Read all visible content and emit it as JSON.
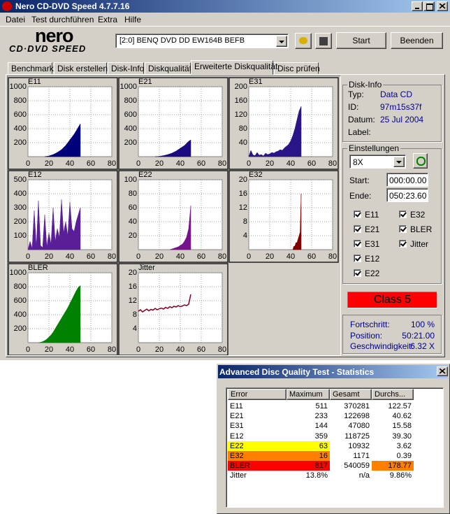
{
  "window": {
    "title": "Nero CD-DVD Speed 4.7.7.16"
  },
  "menu": [
    "Datei",
    "Test durchführen",
    "Extra",
    "Hilfe"
  ],
  "logo": {
    "brand": "nero",
    "product": "CD·DVD SPEED"
  },
  "drive": "[2:0]  BENQ DVD DD EW164B BEFB",
  "buttons": {
    "start": "Start",
    "stop": "Beenden"
  },
  "tabs": [
    "Benchmark",
    "Disk erstellen",
    "Disk-Info",
    "Diskqualität",
    "Erweiterte Diskqualität",
    "Disc prüfen"
  ],
  "chart_data": [
    {
      "type": "area",
      "title": "E11",
      "color": "#00007a",
      "grid": true,
      "xlim": [
        0,
        80
      ],
      "xticks": [
        0,
        20,
        40,
        60,
        80
      ],
      "ylim": [
        0,
        1000
      ],
      "yticks": [
        200,
        400,
        600,
        800,
        1000
      ],
      "x": [
        16,
        18,
        20,
        22,
        24,
        26,
        28,
        30,
        32,
        34,
        36,
        38,
        40,
        42,
        44,
        46,
        48,
        50
      ],
      "values": [
        0,
        5,
        10,
        20,
        30,
        45,
        60,
        80,
        100,
        130,
        160,
        200,
        240,
        280,
        320,
        370,
        420,
        470
      ]
    },
    {
      "type": "area",
      "title": "E21",
      "color": "#1a0a80",
      "grid": true,
      "xlim": [
        0,
        80
      ],
      "xticks": [
        0,
        20,
        40,
        60,
        80
      ],
      "ylim": [
        0,
        1000
      ],
      "yticks": [
        200,
        400,
        600,
        800,
        1000
      ],
      "x": [
        16,
        18,
        20,
        22,
        24,
        26,
        28,
        30,
        32,
        34,
        36,
        38,
        40,
        42,
        44,
        46,
        48,
        50
      ],
      "values": [
        0,
        2,
        5,
        10,
        15,
        22,
        30,
        40,
        50,
        65,
        80,
        100,
        120,
        140,
        160,
        190,
        220,
        240
      ]
    },
    {
      "type": "area",
      "title": "E31",
      "color": "#2a1488",
      "grid": true,
      "xlim": [
        0,
        80
      ],
      "xticks": [
        0,
        20,
        40,
        60,
        80
      ],
      "ylim": [
        0,
        200
      ],
      "yticks": [
        40,
        80,
        120,
        160,
        200
      ],
      "x": [
        0,
        2,
        4,
        6,
        8,
        10,
        12,
        14,
        16,
        18,
        20,
        22,
        24,
        26,
        28,
        30,
        32,
        34,
        36,
        38,
        40,
        42,
        44,
        46,
        48,
        50
      ],
      "values": [
        0,
        18,
        5,
        3,
        12,
        4,
        6,
        2,
        10,
        6,
        8,
        12,
        10,
        14,
        16,
        20,
        18,
        25,
        30,
        35,
        45,
        60,
        80,
        105,
        130,
        144
      ]
    },
    {
      "type": "area",
      "title": "E12",
      "color": "#5a1e96",
      "grid": true,
      "xlim": [
        0,
        80
      ],
      "xticks": [
        0,
        20,
        40,
        60,
        80
      ],
      "ylim": [
        0,
        500
      ],
      "yticks": [
        100,
        200,
        300,
        400,
        500
      ],
      "x": [
        0,
        2,
        4,
        6,
        8,
        10,
        12,
        14,
        16,
        18,
        20,
        22,
        24,
        26,
        28,
        30,
        32,
        34,
        36,
        38,
        40,
        42,
        44,
        46,
        48,
        50
      ],
      "values": [
        0,
        60,
        10,
        280,
        20,
        350,
        30,
        15,
        250,
        20,
        120,
        40,
        300,
        60,
        150,
        90,
        359,
        120,
        200,
        100,
        340,
        150,
        130,
        200,
        250,
        300
      ]
    },
    {
      "type": "area",
      "title": "E22",
      "color": "#76128a",
      "grid": true,
      "xlim": [
        0,
        80
      ],
      "xticks": [
        0,
        20,
        40,
        60,
        80
      ],
      "ylim": [
        0,
        100
      ],
      "yticks": [
        20,
        40,
        60,
        80,
        100
      ],
      "x": [
        30,
        32,
        34,
        36,
        38,
        40,
        42,
        44,
        46,
        48,
        50
      ],
      "values": [
        0,
        1,
        2,
        3,
        4,
        6,
        8,
        12,
        18,
        30,
        63
      ]
    },
    {
      "type": "area",
      "title": "E32",
      "color": "#800000",
      "grid": true,
      "xlim": [
        0,
        80
      ],
      "xticks": [
        0,
        20,
        40,
        60,
        80
      ],
      "ylim": [
        0,
        20
      ],
      "yticks": [
        4,
        8,
        12,
        16,
        20
      ],
      "x": [
        42,
        43,
        44,
        45,
        46,
        47,
        48,
        49,
        50
      ],
      "values": [
        0,
        1,
        1,
        2,
        2,
        3,
        4,
        5,
        16
      ]
    },
    {
      "type": "area",
      "title": "BLER",
      "color": "#008000",
      "grid": true,
      "xlim": [
        0,
        80
      ],
      "xticks": [
        0,
        20,
        40,
        60,
        80
      ],
      "ylim": [
        0,
        1000
      ],
      "yticks": [
        200,
        400,
        600,
        800,
        1000
      ],
      "x": [
        10,
        12,
        14,
        16,
        18,
        20,
        22,
        24,
        26,
        28,
        30,
        32,
        34,
        36,
        38,
        40,
        42,
        44,
        46,
        48,
        50
      ],
      "values": [
        0,
        5,
        15,
        30,
        50,
        80,
        110,
        150,
        200,
        250,
        300,
        350,
        400,
        450,
        500,
        560,
        620,
        680,
        740,
        790,
        817
      ]
    },
    {
      "type": "line",
      "title": "Jitter",
      "color": "#800020",
      "grid": true,
      "xlim": [
        0,
        80
      ],
      "xticks": [
        0,
        20,
        40,
        60,
        80
      ],
      "ylim": [
        0,
        20
      ],
      "yticks": [
        4,
        8,
        12,
        16,
        20
      ],
      "x": [
        0,
        2,
        4,
        6,
        8,
        10,
        12,
        14,
        16,
        18,
        20,
        22,
        24,
        26,
        28,
        30,
        32,
        34,
        36,
        38,
        40,
        42,
        44,
        46,
        48,
        50
      ],
      "values": [
        9.0,
        9.4,
        8.8,
        9.2,
        9.6,
        9.1,
        9.5,
        9.3,
        9.8,
        9.4,
        9.7,
        9.9,
        9.6,
        10.1,
        9.8,
        10.3,
        10.0,
        10.4,
        10.2,
        10.6,
        10.3,
        10.5,
        10.8,
        10.6,
        11.0,
        13.8
      ]
    }
  ],
  "disk_info": {
    "title": "Disk-Info",
    "fields": [
      {
        "label": "Typ:",
        "value": "Data CD"
      },
      {
        "label": "ID:",
        "value": "97m15s37f"
      },
      {
        "label": "Datum:",
        "value": "25 Jul 2004"
      },
      {
        "label": "Label:"
      }
    ]
  },
  "settings": {
    "title": "Einstellungen",
    "speed": "8X",
    "start_label": "Start:",
    "start": "000:00.00",
    "end_label": "Ende:",
    "end": "050:23.60",
    "checks": [
      "E11",
      "E32",
      "E21",
      "BLER",
      "E31",
      "Jitter",
      "E12",
      "E22"
    ]
  },
  "class": "Class 5",
  "progress": [
    {
      "label": "Fortschritt:",
      "value": "100 %"
    },
    {
      "label": "Position:",
      "value": "50:21.00"
    },
    {
      "label": "Geschwindigkeit:",
      "value": "6.32 X"
    }
  ],
  "stats": {
    "title": "Advanced Disc Quality Test - Statistics",
    "columns": [
      "Error",
      "Maximum",
      "Gesamt",
      "Durchs..."
    ],
    "rows": [
      [
        "E11",
        "511",
        "370281",
        "122.57"
      ],
      [
        "E21",
        "233",
        "122698",
        "40.62"
      ],
      [
        "E31",
        "144",
        "47080",
        "15.58"
      ],
      [
        "E12",
        "359",
        "118725",
        "39.30"
      ],
      [
        "E22",
        "63",
        "10932",
        "3.62"
      ],
      [
        "E32",
        "16",
        "1171",
        "0.39"
      ],
      [
        "BLER",
        "817",
        "540059",
        "178.77"
      ],
      [
        "Jitter",
        "13.8%",
        "n/a",
        "9.86%"
      ]
    ]
  }
}
